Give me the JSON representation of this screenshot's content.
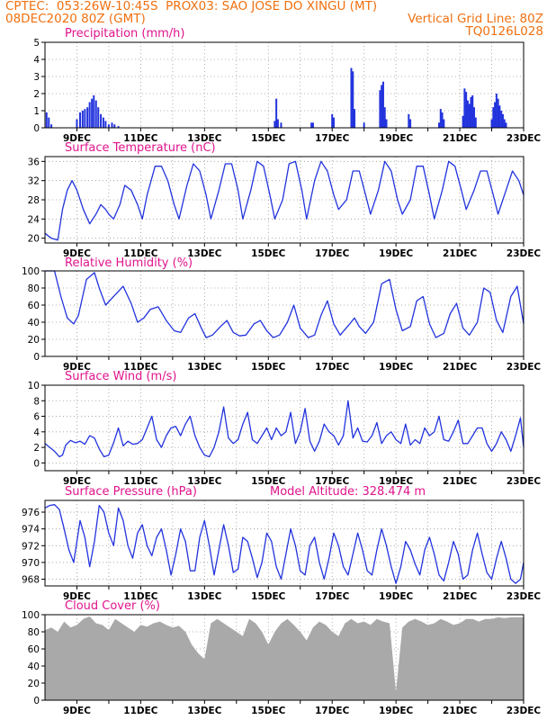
{
  "header": {
    "line1_left": "CPTEC:  053:26W-10:45S  PROX03: SAO JOSE DO XINGU (MT)",
    "line2_left": "08DEC2020 80Z (GMT)",
    "line2_right": "Vertical Grid Line: 80Z",
    "line3_right": "TQ0126L028"
  },
  "colors": {
    "header": "#f07010",
    "title": "#e0148c",
    "series": "#2233dd",
    "cloud": "#a9a9a9",
    "grid": "#9a9a9a"
  },
  "x_tick_labels": [
    "9DEC",
    "11DEC",
    "13DEC",
    "15DEC",
    "17DEC",
    "19DEC",
    "21DEC",
    "23DEC"
  ],
  "chart_data": [
    {
      "type": "bar",
      "title": "Precipitation (mm/h)",
      "ylim": [
        0,
        5
      ],
      "yticks": [
        0,
        1,
        2,
        3,
        4,
        5
      ],
      "xlim_days": [
        8,
        23
      ],
      "bars": [
        {
          "x": 8.05,
          "y": 0.9
        },
        {
          "x": 8.12,
          "y": 0.6
        },
        {
          "x": 8.2,
          "y": 0.2
        },
        {
          "x": 9.0,
          "y": 0.5
        },
        {
          "x": 9.1,
          "y": 0.9
        },
        {
          "x": 9.18,
          "y": 1.0
        },
        {
          "x": 9.25,
          "y": 1.1
        },
        {
          "x": 9.33,
          "y": 1.2
        },
        {
          "x": 9.4,
          "y": 1.5
        },
        {
          "x": 9.47,
          "y": 1.7
        },
        {
          "x": 9.53,
          "y": 1.9
        },
        {
          "x": 9.6,
          "y": 1.6
        },
        {
          "x": 9.67,
          "y": 1.2
        },
        {
          "x": 9.75,
          "y": 0.8
        },
        {
          "x": 9.83,
          "y": 0.6
        },
        {
          "x": 9.9,
          "y": 0.4
        },
        {
          "x": 10.0,
          "y": 0.2
        },
        {
          "x": 10.1,
          "y": 0.3
        },
        {
          "x": 10.18,
          "y": 0.2
        },
        {
          "x": 10.3,
          "y": 0.1
        },
        {
          "x": 15.2,
          "y": 0.4
        },
        {
          "x": 15.25,
          "y": 1.7
        },
        {
          "x": 15.3,
          "y": 0.5
        },
        {
          "x": 15.4,
          "y": 0.3
        },
        {
          "x": 16.35,
          "y": 0.3
        },
        {
          "x": 16.4,
          "y": 0.3
        },
        {
          "x": 17.0,
          "y": 0.8
        },
        {
          "x": 17.05,
          "y": 0.6
        },
        {
          "x": 17.6,
          "y": 3.5
        },
        {
          "x": 17.65,
          "y": 3.3
        },
        {
          "x": 17.7,
          "y": 1.1
        },
        {
          "x": 18.0,
          "y": 0.3
        },
        {
          "x": 18.5,
          "y": 2.2
        },
        {
          "x": 18.55,
          "y": 2.5
        },
        {
          "x": 18.6,
          "y": 2.7
        },
        {
          "x": 18.65,
          "y": 1.2
        },
        {
          "x": 18.7,
          "y": 0.5
        },
        {
          "x": 19.4,
          "y": 0.8
        },
        {
          "x": 19.45,
          "y": 0.5
        },
        {
          "x": 20.35,
          "y": 0.3
        },
        {
          "x": 20.4,
          "y": 1.1
        },
        {
          "x": 20.45,
          "y": 0.9
        },
        {
          "x": 20.5,
          "y": 0.5
        },
        {
          "x": 21.1,
          "y": 0.7
        },
        {
          "x": 21.15,
          "y": 2.3
        },
        {
          "x": 21.2,
          "y": 2.1
        },
        {
          "x": 21.25,
          "y": 1.6
        },
        {
          "x": 21.3,
          "y": 1.4
        },
        {
          "x": 21.35,
          "y": 1.8
        },
        {
          "x": 21.4,
          "y": 1.9
        },
        {
          "x": 21.45,
          "y": 1.2
        },
        {
          "x": 21.5,
          "y": 0.6
        },
        {
          "x": 22.0,
          "y": 0.5
        },
        {
          "x": 22.05,
          "y": 1.2
        },
        {
          "x": 22.1,
          "y": 1.5
        },
        {
          "x": 22.15,
          "y": 2.0
        },
        {
          "x": 22.2,
          "y": 1.7
        },
        {
          "x": 22.25,
          "y": 1.3
        },
        {
          "x": 22.3,
          "y": 1.0
        },
        {
          "x": 22.35,
          "y": 0.8
        },
        {
          "x": 22.4,
          "y": 0.5
        },
        {
          "x": 22.45,
          "y": 0.3
        }
      ]
    },
    {
      "type": "line",
      "title": "Surface Temperature (nC)",
      "ylim": [
        19,
        37
      ],
      "yticks": [
        20,
        24,
        28,
        32,
        36
      ],
      "xlim_days": [
        8,
        23
      ],
      "x": [
        8.0,
        8.2,
        8.4,
        8.55,
        8.7,
        8.85,
        9.0,
        9.2,
        9.4,
        9.6,
        9.75,
        9.9,
        10.0,
        10.15,
        10.35,
        10.5,
        10.7,
        10.9,
        11.05,
        11.2,
        11.45,
        11.65,
        11.85,
        12.05,
        12.2,
        12.45,
        12.65,
        12.85,
        13.05,
        13.2,
        13.45,
        13.65,
        13.85,
        14.05,
        14.2,
        14.45,
        14.65,
        14.85,
        15.05,
        15.2,
        15.45,
        15.65,
        15.85,
        16.05,
        16.2,
        16.45,
        16.65,
        16.85,
        17.05,
        17.2,
        17.45,
        17.65,
        17.85,
        18.05,
        18.2,
        18.45,
        18.65,
        18.85,
        19.05,
        19.2,
        19.45,
        19.65,
        19.85,
        20.05,
        20.2,
        20.45,
        20.65,
        20.85,
        21.05,
        21.2,
        21.45,
        21.65,
        21.85,
        22.05,
        22.2,
        22.45,
        22.65,
        22.85,
        23.0
      ],
      "y": [
        21,
        20,
        19.6,
        26,
        30,
        32,
        30,
        26,
        23,
        25,
        27,
        26,
        25,
        24,
        27,
        31,
        30,
        27,
        24,
        29,
        35,
        35,
        32,
        27,
        24,
        31,
        35.5,
        34,
        29,
        24,
        30,
        35.5,
        35.5,
        30,
        24,
        30,
        36,
        35,
        29,
        24,
        28,
        35.5,
        36,
        30,
        24,
        32,
        36,
        34,
        29,
        26,
        28,
        34,
        34,
        29,
        25,
        30,
        36,
        34,
        28,
        25,
        28,
        35,
        35,
        29,
        24,
        30,
        36,
        35,
        30,
        26,
        30,
        34,
        34,
        29,
        25,
        30,
        34,
        32,
        29
      ]
    },
    {
      "type": "line",
      "title": "Relative Humidity (%)",
      "ylim": [
        0,
        100
      ],
      "yticks": [
        0,
        20,
        40,
        60,
        80,
        100
      ],
      "xlim_days": [
        8,
        23
      ],
      "x": [
        8.0,
        8.3,
        8.5,
        8.7,
        8.9,
        9.05,
        9.3,
        9.55,
        9.7,
        9.9,
        10.2,
        10.45,
        10.7,
        10.9,
        11.1,
        11.3,
        11.55,
        11.8,
        12.05,
        12.25,
        12.5,
        12.7,
        12.9,
        13.05,
        13.25,
        13.5,
        13.7,
        13.9,
        14.1,
        14.3,
        14.55,
        14.75,
        14.95,
        15.15,
        15.35,
        15.6,
        15.8,
        16.0,
        16.25,
        16.45,
        16.65,
        16.85,
        17.05,
        17.25,
        17.55,
        17.7,
        17.85,
        18.05,
        18.3,
        18.55,
        18.8,
        19.0,
        19.2,
        19.45,
        19.65,
        19.85,
        20.05,
        20.25,
        20.5,
        20.7,
        20.9,
        21.1,
        21.3,
        21.55,
        21.75,
        21.95,
        22.15,
        22.35,
        22.6,
        22.8,
        23.0
      ],
      "y": [
        100,
        100,
        70,
        45,
        38,
        48,
        90,
        98,
        80,
        60,
        72,
        82,
        62,
        40,
        45,
        55,
        58,
        42,
        30,
        28,
        45,
        50,
        33,
        22,
        25,
        35,
        42,
        28,
        24,
        25,
        38,
        42,
        30,
        22,
        25,
        40,
        60,
        33,
        22,
        25,
        48,
        65,
        38,
        25,
        38,
        45,
        35,
        27,
        40,
        85,
        90,
        55,
        30,
        35,
        65,
        70,
        38,
        22,
        27,
        50,
        62,
        33,
        25,
        40,
        80,
        75,
        42,
        28,
        70,
        82,
        38
      ]
    },
    {
      "type": "line",
      "title": "Surface Wind (m/s)",
      "ylim": [
        -1,
        10
      ],
      "yticks": [
        0,
        2,
        4,
        6,
        8,
        10
      ],
      "xlim_days": [
        8,
        23
      ],
      "x": [
        8.0,
        8.15,
        8.3,
        8.45,
        8.55,
        8.65,
        8.8,
        8.95,
        9.1,
        9.25,
        9.4,
        9.55,
        9.7,
        9.85,
        10.0,
        10.15,
        10.3,
        10.45,
        10.6,
        10.75,
        10.9,
        11.05,
        11.2,
        11.35,
        11.5,
        11.65,
        11.8,
        11.95,
        12.1,
        12.25,
        12.4,
        12.55,
        12.7,
        12.85,
        13.0,
        13.15,
        13.3,
        13.45,
        13.6,
        13.75,
        13.9,
        14.05,
        14.2,
        14.35,
        14.5,
        14.65,
        14.8,
        14.95,
        15.1,
        15.25,
        15.4,
        15.55,
        15.7,
        15.85,
        16.0,
        16.15,
        16.3,
        16.45,
        16.6,
        16.75,
        16.9,
        17.05,
        17.2,
        17.35,
        17.5,
        17.65,
        17.8,
        17.95,
        18.1,
        18.25,
        18.4,
        18.55,
        18.7,
        18.85,
        19.0,
        19.15,
        19.3,
        19.45,
        19.6,
        19.75,
        19.9,
        20.05,
        20.2,
        20.35,
        20.5,
        20.65,
        20.8,
        20.95,
        21.1,
        21.25,
        21.4,
        21.55,
        21.7,
        21.85,
        22.0,
        22.15,
        22.3,
        22.45,
        22.6,
        22.75,
        22.9,
        23.0
      ],
      "y": [
        2.5,
        2.0,
        1.5,
        0.8,
        1.0,
        2.3,
        2.9,
        2.6,
        2.8,
        2.4,
        3.5,
        3.2,
        1.8,
        0.8,
        1.0,
        2.6,
        4.5,
        2.2,
        2.8,
        2.4,
        2.5,
        3.0,
        4.5,
        6.0,
        3.0,
        2.0,
        3.5,
        4.5,
        4.7,
        3.5,
        5.0,
        6.0,
        3.5,
        2.0,
        1.0,
        0.8,
        2.0,
        4.0,
        7.2,
        3.2,
        2.5,
        3.0,
        5.0,
        6.5,
        3.0,
        2.5,
        3.5,
        4.5,
        3.0,
        4.5,
        3.5,
        4.0,
        6.5,
        2.5,
        4.0,
        7.0,
        2.8,
        1.5,
        2.8,
        5.0,
        4.0,
        3.5,
        2.3,
        3.5,
        8.0,
        3.2,
        4.5,
        2.8,
        2.7,
        3.5,
        5.2,
        2.5,
        3.5,
        4.0,
        3.0,
        2.5,
        5.0,
        2.3,
        3.0,
        2.5,
        4.5,
        3.5,
        4.0,
        6.0,
        3.0,
        2.8,
        4.0,
        5.5,
        2.5,
        2.5,
        3.5,
        4.5,
        4.5,
        2.5,
        1.5,
        2.5,
        4.0,
        3.0,
        1.5,
        3.5,
        5.8,
        2.0
      ]
    },
    {
      "type": "line",
      "title": "Surface Pressure (hPa)",
      "annotation": "Model Altitude: 328.474 m",
      "ylim": [
        967.2,
        977.4
      ],
      "yticks": [
        968,
        970,
        972,
        974,
        976
      ],
      "xlim_days": [
        8,
        23
      ],
      "x": [
        8.0,
        8.15,
        8.3,
        8.45,
        8.6,
        8.75,
        8.9,
        9.0,
        9.1,
        9.25,
        9.4,
        9.55,
        9.7,
        9.85,
        10.0,
        10.15,
        10.3,
        10.45,
        10.6,
        10.75,
        10.9,
        11.05,
        11.2,
        11.35,
        11.5,
        11.65,
        11.8,
        11.95,
        12.1,
        12.25,
        12.4,
        12.55,
        12.7,
        12.85,
        13.0,
        13.15,
        13.3,
        13.45,
        13.6,
        13.75,
        13.9,
        14.05,
        14.2,
        14.35,
        14.5,
        14.65,
        14.8,
        14.95,
        15.1,
        15.25,
        15.4,
        15.55,
        15.7,
        15.85,
        16.0,
        16.15,
        16.3,
        16.45,
        16.6,
        16.75,
        16.9,
        17.05,
        17.2,
        17.35,
        17.5,
        17.65,
        17.8,
        17.95,
        18.1,
        18.25,
        18.4,
        18.55,
        18.7,
        18.85,
        19.0,
        19.15,
        19.3,
        19.45,
        19.6,
        19.75,
        19.9,
        20.05,
        20.2,
        20.35,
        20.5,
        20.65,
        20.8,
        20.95,
        21.1,
        21.25,
        21.4,
        21.55,
        21.7,
        21.85,
        22.0,
        22.15,
        22.3,
        22.45,
        22.6,
        22.75,
        22.9,
        23.0
      ],
      "y": [
        976.5,
        976.8,
        976.9,
        976.3,
        974.0,
        971.5,
        970.0,
        972.5,
        975.0,
        973.0,
        969.5,
        972.5,
        976.8,
        976.0,
        973.5,
        972.0,
        976.5,
        975.0,
        972.0,
        970.5,
        973.5,
        974.5,
        972.0,
        970.8,
        973.0,
        974.0,
        971.5,
        968.5,
        971.0,
        974.0,
        972.5,
        969.0,
        969.0,
        973.0,
        975.0,
        972.0,
        968.5,
        971.5,
        974.5,
        972.0,
        968.8,
        969.2,
        973.0,
        972.5,
        970.5,
        968.2,
        970.0,
        973.5,
        972.5,
        969.5,
        968.0,
        971.0,
        974.0,
        972.0,
        969.0,
        968.5,
        972.0,
        973.0,
        970.0,
        968.0,
        970.5,
        973.5,
        972.0,
        969.5,
        968.5,
        971.0,
        973.5,
        971.5,
        969.0,
        968.5,
        971.5,
        974.0,
        972.0,
        969.5,
        967.5,
        969.5,
        972.5,
        971.5,
        969.8,
        968.5,
        971.5,
        973.0,
        971.0,
        968.5,
        967.8,
        970.0,
        972.5,
        971.0,
        968.0,
        968.5,
        971.5,
        973.5,
        971.0,
        968.8,
        968.0,
        970.5,
        972.5,
        970.5,
        968.0,
        967.5,
        968.0,
        970.0
      ]
    },
    {
      "type": "area",
      "title": "Cloud Cover (%)",
      "ylim": [
        0,
        100
      ],
      "yticks": [
        0,
        20,
        40,
        60,
        80,
        100
      ],
      "xlim_days": [
        8,
        23
      ],
      "x": [
        8.0,
        8.2,
        8.4,
        8.6,
        8.8,
        9.0,
        9.2,
        9.4,
        9.6,
        9.8,
        10.0,
        10.2,
        10.4,
        10.6,
        10.8,
        11.0,
        11.2,
        11.4,
        11.6,
        11.8,
        12.0,
        12.2,
        12.4,
        12.6,
        12.8,
        13.0,
        13.2,
        13.4,
        13.6,
        13.8,
        14.0,
        14.2,
        14.4,
        14.6,
        14.8,
        15.0,
        15.2,
        15.4,
        15.6,
        15.8,
        16.0,
        16.2,
        16.4,
        16.6,
        16.8,
        17.0,
        17.2,
        17.4,
        17.6,
        17.8,
        18.0,
        18.2,
        18.4,
        18.6,
        18.8,
        19.0,
        19.2,
        19.4,
        19.6,
        19.8,
        20.0,
        20.2,
        20.4,
        20.6,
        20.8,
        21.0,
        21.2,
        21.4,
        21.6,
        21.8,
        22.0,
        22.2,
        22.4,
        22.6,
        22.8,
        23.0
      ],
      "y": [
        82,
        85,
        80,
        92,
        85,
        88,
        95,
        98,
        90,
        88,
        82,
        95,
        90,
        85,
        80,
        88,
        86,
        90,
        92,
        88,
        85,
        87,
        80,
        65,
        55,
        48,
        90,
        95,
        90,
        85,
        80,
        75,
        95,
        90,
        80,
        65,
        80,
        90,
        95,
        88,
        80,
        70,
        85,
        92,
        88,
        80,
        75,
        90,
        95,
        90,
        92,
        88,
        95,
        92,
        90,
        10,
        85,
        92,
        95,
        92,
        88,
        90,
        95,
        92,
        88,
        90,
        95,
        95,
        92,
        95,
        95,
        97,
        96,
        97,
        97,
        97
      ]
    }
  ]
}
